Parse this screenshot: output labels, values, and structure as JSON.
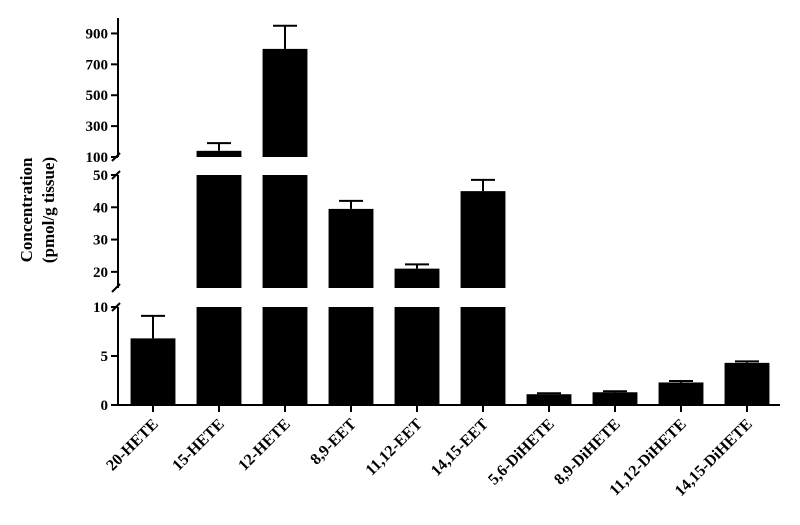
{
  "chart_data": {
    "type": "bar",
    "ylabel": [
      "Concentration",
      "(pmol/g tissue)"
    ],
    "categories": [
      "20-HETE",
      "15-HETE",
      "12-HETE",
      "8,9-EET",
      "11,12-EET",
      "14,15-EET",
      "5,6-DiHETE",
      "8,9-DiHETE",
      "11,12-DiHETE",
      "14,15-DiHETE"
    ],
    "values": [
      6.8,
      140,
      800,
      39.5,
      21,
      45,
      1.1,
      1.3,
      2.3,
      4.3
    ],
    "errors": [
      2.3,
      50,
      150,
      2.5,
      1.3,
      3.5,
      0.1,
      0.1,
      0.15,
      0.15
    ],
    "broken_axis": true,
    "segments": [
      {
        "ylim": [
          0,
          10
        ],
        "ticks": [
          0,
          5,
          10
        ]
      },
      {
        "ylim": [
          15,
          50
        ],
        "ticks": [
          20,
          30,
          40,
          50
        ]
      },
      {
        "ylim": [
          100,
          1000
        ],
        "ticks": [
          100,
          300,
          500,
          700,
          900
        ]
      }
    ],
    "bar_color": "#000000"
  }
}
